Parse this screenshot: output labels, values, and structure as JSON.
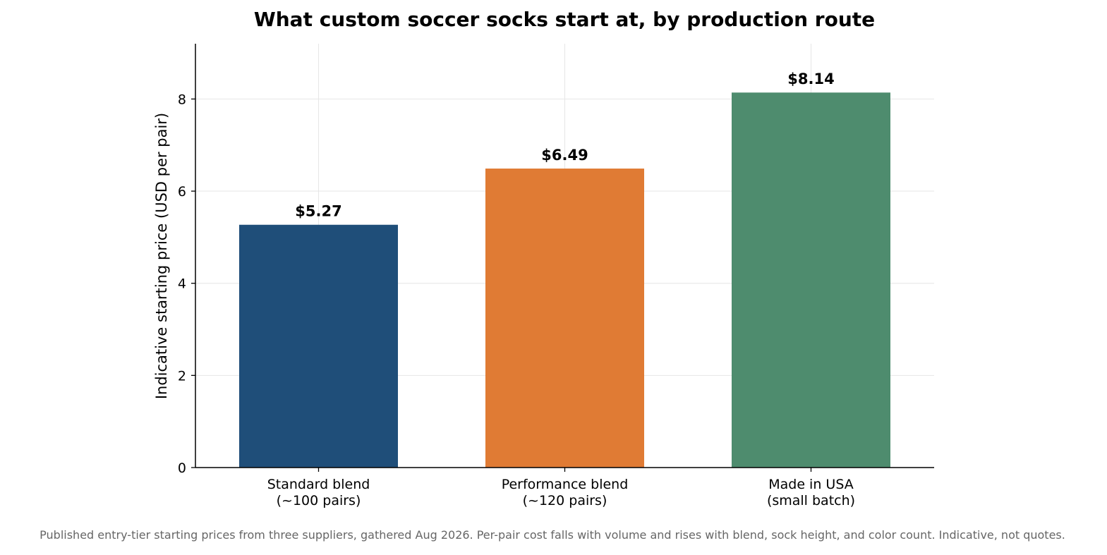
{
  "chart_data": {
    "type": "bar",
    "title": "What custom soccer socks start at, by production route",
    "xlabel": "",
    "ylabel": "Indicative starting price (USD per pair)",
    "ylim": [
      0,
      9.2
    ],
    "yticks": [
      0,
      2,
      4,
      6,
      8
    ],
    "grid": true,
    "legend": "none",
    "categories": [
      [
        "Standard blend",
        "(~100 pairs)"
      ],
      [
        "Performance blend",
        "(~120 pairs)"
      ],
      [
        "Made in USA",
        "(small batch)"
      ]
    ],
    "values": [
      5.27,
      6.49,
      8.14
    ],
    "value_labels": [
      "$5.27",
      "$6.49",
      "$8.14"
    ],
    "colors": [
      "#1f4e79",
      "#e07b34",
      "#4e8c6e"
    ]
  },
  "footnote": "Published entry-tier starting prices from three suppliers, gathered Aug 2026. Per-pair cost falls with volume and rises with blend, sock height, and color count. Indicative, not quotes."
}
